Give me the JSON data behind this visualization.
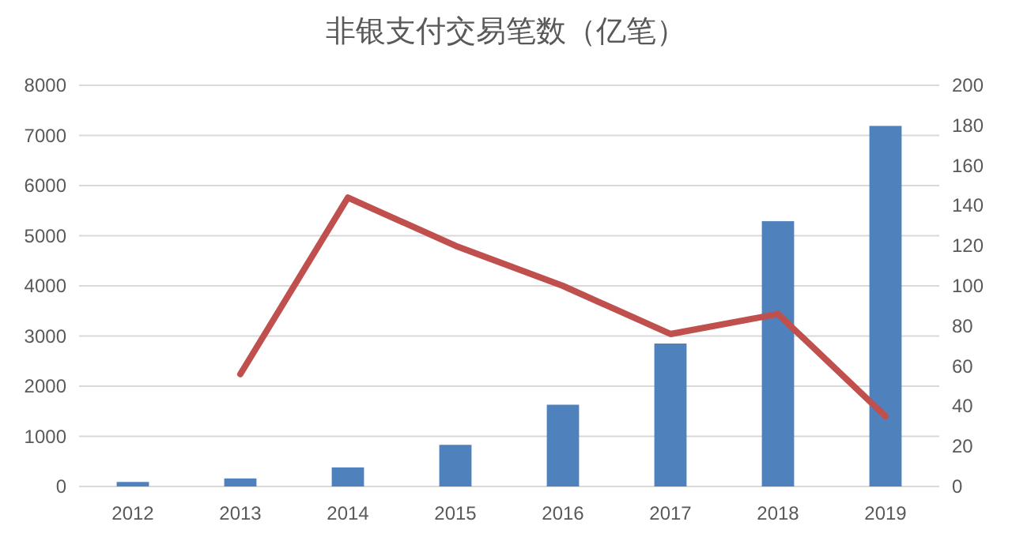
{
  "chart_data": {
    "type": "bar",
    "title": "非银支付交易笔数（亿笔）",
    "categories": [
      "2012",
      "2013",
      "2014",
      "2015",
      "2016",
      "2017",
      "2018",
      "2019"
    ],
    "series": [
      {
        "color": "#4f81bd",
        "values": [
          90,
          160,
          380,
          830,
          1630,
          2850,
          5290,
          7190
        ]
      },
      {
        "type": "line",
        "axis": "y2",
        "color": "#c0504d",
        "values": [
          null,
          56,
          144,
          120,
          100,
          76,
          86,
          35
        ]
      }
    ],
    "ylim": [
      0,
      8000
    ],
    "yticks": [
      0,
      1000,
      2000,
      3000,
      4000,
      5000,
      6000,
      7000,
      8000
    ],
    "y2lim": [
      0,
      200
    ],
    "y2ticks": [
      0,
      20,
      40,
      60,
      80,
      100,
      120,
      140,
      160,
      180,
      200
    ],
    "grid": "y"
  }
}
